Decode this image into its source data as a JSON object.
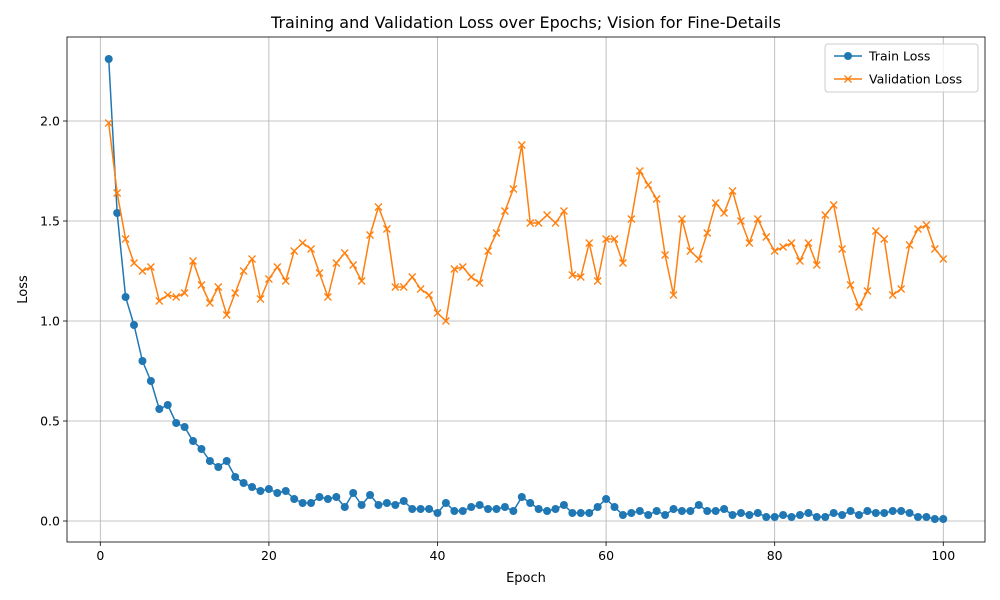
{
  "chart_data": {
    "type": "line",
    "title": "Training and Validation Loss over Epochs; Vision for Fine-Details",
    "xlabel": "Epoch",
    "ylabel": "Loss",
    "xlim": [
      -3.95,
      104.95
    ],
    "ylim": [
      -0.105,
      2.42
    ],
    "xticks": [
      0,
      20,
      40,
      60,
      80,
      100
    ],
    "yticks": [
      0.0,
      0.5,
      1.0,
      1.5,
      2.0
    ],
    "xtick_labels": [
      "0",
      "20",
      "40",
      "60",
      "80",
      "100"
    ],
    "ytick_labels": [
      "0.0",
      "0.5",
      "1.0",
      "1.5",
      "2.0"
    ],
    "grid": true,
    "legend_position": "upper right",
    "x": [
      1,
      2,
      3,
      4,
      5,
      6,
      7,
      8,
      9,
      10,
      11,
      12,
      13,
      14,
      15,
      16,
      17,
      18,
      19,
      20,
      21,
      22,
      23,
      24,
      25,
      26,
      27,
      28,
      29,
      30,
      31,
      32,
      33,
      34,
      35,
      36,
      37,
      38,
      39,
      40,
      41,
      42,
      43,
      44,
      45,
      46,
      47,
      48,
      49,
      50,
      51,
      52,
      53,
      54,
      55,
      56,
      57,
      58,
      59,
      60,
      61,
      62,
      63,
      64,
      65,
      66,
      67,
      68,
      69,
      70,
      71,
      72,
      73,
      74,
      75,
      76,
      77,
      78,
      79,
      80,
      81,
      82,
      83,
      84,
      85,
      86,
      87,
      88,
      89,
      90,
      91,
      92,
      93,
      94,
      95,
      96,
      97,
      98,
      99,
      100
    ],
    "series": [
      {
        "name": "Train Loss",
        "color": "#1f77b4",
        "marker": "circle",
        "values": [
          2.31,
          1.54,
          1.12,
          0.98,
          0.8,
          0.7,
          0.56,
          0.58,
          0.49,
          0.47,
          0.4,
          0.36,
          0.3,
          0.27,
          0.3,
          0.22,
          0.19,
          0.17,
          0.15,
          0.16,
          0.14,
          0.15,
          0.11,
          0.09,
          0.09,
          0.12,
          0.11,
          0.12,
          0.07,
          0.14,
          0.08,
          0.13,
          0.08,
          0.09,
          0.08,
          0.1,
          0.06,
          0.06,
          0.06,
          0.04,
          0.09,
          0.05,
          0.05,
          0.07,
          0.08,
          0.06,
          0.06,
          0.07,
          0.05,
          0.12,
          0.09,
          0.06,
          0.05,
          0.06,
          0.08,
          0.04,
          0.04,
          0.04,
          0.07,
          0.11,
          0.07,
          0.03,
          0.04,
          0.05,
          0.03,
          0.05,
          0.03,
          0.06,
          0.05,
          0.05,
          0.08,
          0.05,
          0.05,
          0.06,
          0.03,
          0.04,
          0.03,
          0.04,
          0.02,
          0.02,
          0.03,
          0.02,
          0.03,
          0.04,
          0.02,
          0.02,
          0.04,
          0.03,
          0.05,
          0.03,
          0.05,
          0.04,
          0.04,
          0.05,
          0.05,
          0.04,
          0.02,
          0.02,
          0.01,
          0.01
        ]
      },
      {
        "name": "Validation Loss",
        "color": "#ff7f0e",
        "marker": "x",
        "values": [
          1.99,
          1.64,
          1.41,
          1.29,
          1.25,
          1.27,
          1.1,
          1.13,
          1.12,
          1.14,
          1.3,
          1.18,
          1.09,
          1.17,
          1.03,
          1.14,
          1.25,
          1.31,
          1.11,
          1.21,
          1.27,
          1.2,
          1.35,
          1.39,
          1.36,
          1.24,
          1.12,
          1.29,
          1.34,
          1.28,
          1.2,
          1.43,
          1.57,
          1.46,
          1.17,
          1.17,
          1.22,
          1.16,
          1.13,
          1.04,
          1.0,
          1.26,
          1.27,
          1.22,
          1.19,
          1.35,
          1.44,
          1.55,
          1.66,
          1.88,
          1.49,
          1.49,
          1.53,
          1.49,
          1.55,
          1.23,
          1.22,
          1.39,
          1.2,
          1.41,
          1.41,
          1.29,
          1.51,
          1.75,
          1.68,
          1.61,
          1.33,
          1.13,
          1.51,
          1.35,
          1.31,
          1.44,
          1.59,
          1.54,
          1.65,
          1.5,
          1.39,
          1.51,
          1.42,
          1.35,
          1.37,
          1.39,
          1.3,
          1.39,
          1.28,
          1.53,
          1.58,
          1.36,
          1.18,
          1.07,
          1.15,
          1.45,
          1.41,
          1.13,
          1.16,
          1.38,
          1.46,
          1.48,
          1.36,
          1.31
        ]
      }
    ]
  }
}
